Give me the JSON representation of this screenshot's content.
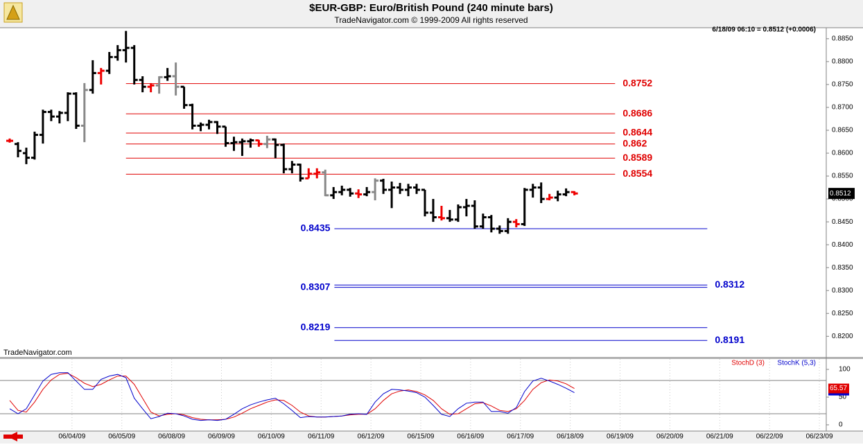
{
  "chart_data": [
    {
      "type": "ohlc",
      "title": "$EUR-GBP:  Euro/British Pound  (240 minute bars)",
      "subtitle": "TradeNavigator.com © 1999-2009 All rights reserved",
      "watermark": "TradeNavigator.com",
      "status": "6/18/09 06:10 = 0.8512 (+0.0006)",
      "open": [
        0.8627,
        0.862,
        0.86,
        0.859,
        0.864,
        0.869,
        0.868,
        0.8688,
        0.873,
        0.866,
        0.8738,
        0.8775,
        0.878,
        0.881,
        0.8825,
        0.883,
        0.876,
        0.8745,
        0.8748,
        0.8766,
        0.8768,
        0.8745,
        0.8705,
        0.866,
        0.8662,
        0.8668,
        0.8658,
        0.8622,
        0.8624,
        0.8626,
        0.8628,
        0.862,
        0.863,
        0.8618,
        0.8565,
        0.8575,
        0.8545,
        0.8555,
        0.8558,
        0.8508,
        0.8515,
        0.852,
        0.8512,
        0.851,
        0.8515,
        0.854,
        0.852,
        0.8525,
        0.852,
        0.8525,
        0.852,
        0.847,
        0.846,
        0.8458,
        0.8455,
        0.8482,
        0.8485,
        0.844,
        0.846,
        0.8435,
        0.843,
        0.845,
        0.8445,
        0.852,
        0.8525,
        0.85,
        0.8503,
        0.851,
        0.8515
      ],
      "high": [
        0.8632,
        0.8624,
        0.8612,
        0.8647,
        0.8695,
        0.8695,
        0.8692,
        0.8733,
        0.8733,
        0.8753,
        0.8803,
        0.8786,
        0.8821,
        0.8836,
        0.8867,
        0.8836,
        0.8768,
        0.8753,
        0.8768,
        0.8786,
        0.8798,
        0.8745,
        0.8708,
        0.8667,
        0.8673,
        0.867,
        0.8658,
        0.8636,
        0.8632,
        0.8632,
        0.8629,
        0.8638,
        0.8632,
        0.8621,
        0.8583,
        0.8577,
        0.8567,
        0.8567,
        0.8564,
        0.8526,
        0.8529,
        0.8524,
        0.8521,
        0.8526,
        0.8545,
        0.8544,
        0.8538,
        0.8535,
        0.8533,
        0.8533,
        0.852,
        0.85,
        0.8485,
        0.8476,
        0.8488,
        0.85,
        0.8497,
        0.8468,
        0.8465,
        0.8442,
        0.8458,
        0.8456,
        0.8524,
        0.8533,
        0.8536,
        0.8511,
        0.8518,
        0.8523,
        0.8517
      ],
      "low": [
        0.8623,
        0.8591,
        0.8576,
        0.8586,
        0.8621,
        0.867,
        0.8665,
        0.867,
        0.8653,
        0.8624,
        0.873,
        0.875,
        0.8773,
        0.8802,
        0.8798,
        0.875,
        0.8733,
        0.8733,
        0.873,
        0.8758,
        0.8726,
        0.8697,
        0.8652,
        0.8648,
        0.8652,
        0.8642,
        0.8614,
        0.8605,
        0.8594,
        0.8612,
        0.8614,
        0.8611,
        0.8589,
        0.8556,
        0.8556,
        0.8538,
        0.8545,
        0.8545,
        0.8506,
        0.85,
        0.8508,
        0.8505,
        0.8502,
        0.8506,
        0.8497,
        0.8511,
        0.848,
        0.8511,
        0.8506,
        0.8511,
        0.8462,
        0.845,
        0.8453,
        0.845,
        0.845,
        0.8462,
        0.8435,
        0.8435,
        0.8427,
        0.8424,
        0.8424,
        0.8438,
        0.8441,
        0.8503,
        0.8491,
        0.8497,
        0.8495,
        0.8506,
        0.8508
      ],
      "close": [
        0.8627,
        0.8605,
        0.859,
        0.864,
        0.869,
        0.868,
        0.8688,
        0.873,
        0.866,
        0.8738,
        0.8775,
        0.878,
        0.881,
        0.8825,
        0.883,
        0.876,
        0.8745,
        0.8748,
        0.8766,
        0.8768,
        0.8745,
        0.8705,
        0.866,
        0.8662,
        0.8668,
        0.8658,
        0.8622,
        0.8624,
        0.8626,
        0.8628,
        0.862,
        0.863,
        0.8618,
        0.8565,
        0.8575,
        0.8545,
        0.8555,
        0.8558,
        0.8508,
        0.8515,
        0.852,
        0.8512,
        0.851,
        0.8515,
        0.854,
        0.852,
        0.8525,
        0.852,
        0.8525,
        0.852,
        0.847,
        0.846,
        0.8458,
        0.8455,
        0.8482,
        0.8485,
        0.844,
        0.846,
        0.8435,
        0.843,
        0.845,
        0.8445,
        0.852,
        0.8525,
        0.85,
        0.8503,
        0.851,
        0.8515,
        0.8512
      ],
      "bar_colors": [
        "#e00",
        "#000",
        "#000",
        "#000",
        "#000",
        "#000",
        "#000",
        "#000",
        "#000",
        "#888",
        "#000",
        "#e00",
        "#000",
        "#000",
        "#000",
        "#000",
        "#000",
        "#e00",
        "#888",
        "#000",
        "#888",
        "#000",
        "#000",
        "#000",
        "#000",
        "#000",
        "#000",
        "#000",
        "#000",
        "#000",
        "#e00",
        "#888",
        "#000",
        "#000",
        "#000",
        "#000",
        "#e00",
        "#e00",
        "#888",
        "#000",
        "#000",
        "#000",
        "#e00",
        "#000",
        "#888",
        "#000",
        "#000",
        "#000",
        "#000",
        "#000",
        "#000",
        "#000",
        "#e00",
        "#000",
        "#000",
        "#000",
        "#000",
        "#000",
        "#000",
        "#000",
        "#000",
        "#e00",
        "#000",
        "#000",
        "#000",
        "#e00",
        "#000",
        "#000",
        "#e00"
      ],
      "ylim": [
        0.8155,
        0.8874
      ],
      "yticks": [
        {
          "value": 0.82,
          "label": "0.8200"
        },
        {
          "value": 0.825,
          "label": "0.8250"
        },
        {
          "value": 0.83,
          "label": "0.8300"
        },
        {
          "value": 0.835,
          "label": "0.8350"
        },
        {
          "value": 0.84,
          "label": "0.8400"
        },
        {
          "value": 0.845,
          "label": "0.8450"
        },
        {
          "value": 0.85,
          "label": "0.8500"
        },
        {
          "value": 0.855,
          "label": "0.8550"
        },
        {
          "value": 0.86,
          "label": "0.8600"
        },
        {
          "value": 0.865,
          "label": "0.8650"
        },
        {
          "value": 0.87,
          "label": "0.8700"
        },
        {
          "value": 0.875,
          "label": "0.8750"
        },
        {
          "value": 0.88,
          "label": "0.8800"
        },
        {
          "value": 0.885,
          "label": "0.8850"
        }
      ],
      "levels_upper": {
        "color": "#e00000",
        "values": [
          0.8752,
          0.8686,
          0.8644,
          0.862,
          0.8589,
          0.8554
        ]
      },
      "levels_lower": {
        "color": "#0000cc",
        "values": [
          0.8435,
          0.8307,
          0.8312,
          0.8219,
          0.8191
        ],
        "label_sides": [
          "left",
          "left",
          "right",
          "left",
          "right"
        ]
      }
    },
    {
      "type": "line",
      "series": [
        {
          "name": "StochD (3)",
          "color": "#e00000",
          "values": [
            44,
            26,
            23,
            41,
            64,
            81,
            91,
            93,
            85,
            75,
            69,
            73,
            81,
            88,
            88,
            73,
            48,
            23,
            16,
            19,
            20,
            18,
            13,
            10,
            9,
            9,
            10,
            14,
            21,
            29,
            35,
            41,
            45,
            44,
            35,
            23,
            16,
            14,
            14,
            15,
            16,
            18,
            19,
            19,
            29,
            44,
            56,
            61,
            63,
            60,
            54,
            44,
            29,
            19,
            20,
            29,
            38,
            40,
            34,
            26,
            24,
            29,
            44,
            64,
            76,
            81,
            79,
            74,
            65.57
          ]
        },
        {
          "name": "StochK (5,3)",
          "color": "#0000cc",
          "values": [
            29,
            20,
            29,
            54,
            79,
            91,
            94,
            94,
            79,
            64,
            64,
            82,
            88,
            91,
            85,
            48,
            29,
            11,
            15,
            21,
            20,
            16,
            10,
            8,
            9,
            8,
            10,
            19,
            29,
            36,
            41,
            45,
            48,
            38,
            26,
            13,
            15,
            14,
            14,
            15,
            16,
            19,
            20,
            19,
            41,
            56,
            64,
            63,
            61,
            58,
            50,
            35,
            19,
            15,
            29,
            39,
            41,
            41,
            24,
            24,
            21,
            31,
            60,
            79,
            84,
            79,
            73,
            66,
            58
          ]
        }
      ],
      "ylim": [
        -11.25,
        118.75
      ],
      "yticks": [
        0,
        50,
        100
      ],
      "ref_lines": [
        20,
        80
      ],
      "xtick_labels": [
        "06/04/09",
        "06/05/09",
        "06/08/09",
        "06/09/09",
        "06/10/09",
        "06/11/09",
        "06/12/09",
        "06/15/09",
        "06/16/09",
        "06/17/09",
        "06/18/09",
        "06/19/09",
        "06/20/09",
        "06/21/09",
        "06/22/09",
        "06/23/09"
      ]
    }
  ]
}
